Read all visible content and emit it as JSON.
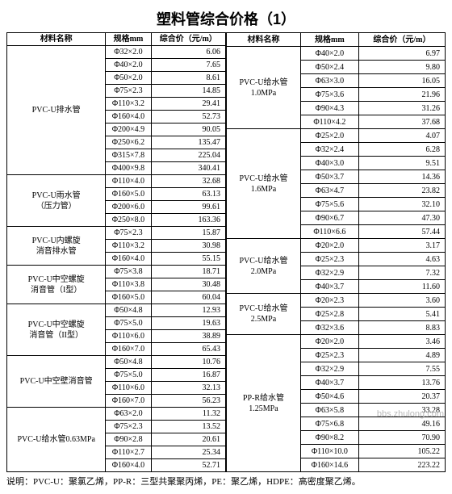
{
  "title": "塑料管综合价格（1）",
  "headers": {
    "name": "材料名称",
    "spec": "规格mm",
    "price": "综合价（元/m）"
  },
  "phi": "Φ",
  "left": [
    {
      "name": "PVC-U排水管",
      "rows": [
        [
          "32×2.0",
          "6.06"
        ],
        [
          "40×2.0",
          "7.65"
        ],
        [
          "50×2.0",
          "8.61"
        ],
        [
          "75×2.3",
          "14.85"
        ],
        [
          "110×3.2",
          "29.41"
        ],
        [
          "160×4.0",
          "52.73"
        ],
        [
          "200×4.9",
          "90.05"
        ],
        [
          "250×6.2",
          "135.47"
        ],
        [
          "315×7.8",
          "225.04"
        ],
        [
          "400×9.8",
          "340.41"
        ]
      ]
    },
    {
      "name": "PVC-U雨水管\n（压力管）",
      "rows": [
        [
          "110×4.0",
          "32.68"
        ],
        [
          "160×5.0",
          "63.13"
        ],
        [
          "200×6.0",
          "99.61"
        ],
        [
          "250×8.0",
          "163.36"
        ]
      ]
    },
    {
      "name": "PVC-U内螺旋\n消音排水管",
      "rows": [
        [
          "75×2.3",
          "15.87"
        ],
        [
          "110×3.2",
          "30.98"
        ],
        [
          "160×4.0",
          "55.15"
        ]
      ]
    },
    {
      "name": "PVC-U中空螺旋\n消音管（I型）",
      "rows": [
        [
          "75×3.8",
          "18.71"
        ],
        [
          "110×3.8",
          "30.48"
        ],
        [
          "160×5.0",
          "60.04"
        ]
      ]
    },
    {
      "name": "PVC-U中空螺旋\n消音管（II型）",
      "rows": [
        [
          "50×4.8",
          "12.93"
        ],
        [
          "75×5.0",
          "19.63"
        ],
        [
          "110×6.0",
          "38.89"
        ],
        [
          "160×7.0",
          "65.43"
        ]
      ]
    },
    {
      "name": "PVC-U中空壁消音管",
      "rows": [
        [
          "50×4.8",
          "10.76"
        ],
        [
          "75×5.0",
          "16.87"
        ],
        [
          "110×6.0",
          "32.13"
        ],
        [
          "160×7.0",
          "56.23"
        ]
      ]
    },
    {
      "name": "PVC-U给水管0.63MPa",
      "rows": [
        [
          "63×2.0",
          "11.32"
        ],
        [
          "75×2.3",
          "13.52"
        ],
        [
          "90×2.8",
          "20.61"
        ],
        [
          "110×2.7",
          "25.34"
        ],
        [
          "160×4.0",
          "52.71"
        ]
      ]
    }
  ],
  "right": [
    {
      "name": "PVC-U给水管\n1.0MPa",
      "rows": [
        [
          "40×2.0",
          "6.97"
        ],
        [
          "50×2.4",
          "9.80"
        ],
        [
          "63×3.0",
          "16.05"
        ],
        [
          "75×3.6",
          "21.96"
        ],
        [
          "90×4.3",
          "31.26"
        ],
        [
          "110×4.2",
          "37.68"
        ]
      ]
    },
    {
      "name": "PVC-U给水管\n1.6MPa",
      "rows": [
        [
          "25×2.0",
          "4.07"
        ],
        [
          "32×2.4",
          "6.28"
        ],
        [
          "40×3.0",
          "9.51"
        ],
        [
          "50×3.7",
          "14.36"
        ],
        [
          "63×4.7",
          "23.82"
        ],
        [
          "75×5.6",
          "32.10"
        ],
        [
          "90×6.7",
          "47.30"
        ],
        [
          "110×6.6",
          "57.44"
        ]
      ]
    },
    {
      "name": "PVC-U给水管\n2.0MPa",
      "rows": [
        [
          "20×2.0",
          "3.17"
        ],
        [
          "25×2.3",
          "4.63"
        ],
        [
          "32×2.9",
          "7.32"
        ],
        [
          "40×3.7",
          "11.60"
        ]
      ]
    },
    {
      "name": "PVC-U给水管\n2.5MPa",
      "rows": [
        [
          "20×2.3",
          "3.60"
        ],
        [
          "25×2.8",
          "5.41"
        ],
        [
          "32×3.6",
          "8.83"
        ]
      ]
    },
    {
      "name": "PP-R给水管\n1.25MPa",
      "rows": [
        [
          "20×2.0",
          "3.46"
        ],
        [
          "25×2.3",
          "4.89"
        ],
        [
          "32×2.9",
          "7.55"
        ],
        [
          "40×3.7",
          "13.76"
        ],
        [
          "50×4.6",
          "20.37"
        ],
        [
          "63×5.8",
          "33.28"
        ],
        [
          "75×6.8",
          "49.16"
        ],
        [
          "90×8.2",
          "70.90"
        ],
        [
          "110×10.0",
          "105.22"
        ],
        [
          "160×14.6",
          "223.22"
        ]
      ]
    }
  ],
  "note": "说明：PVC-U：聚氯乙烯，PP-R：三型共聚聚丙烯，PE：聚乙烯，HDPE：高密度聚乙烯。",
  "watermark": "bbs.zhulong.com"
}
